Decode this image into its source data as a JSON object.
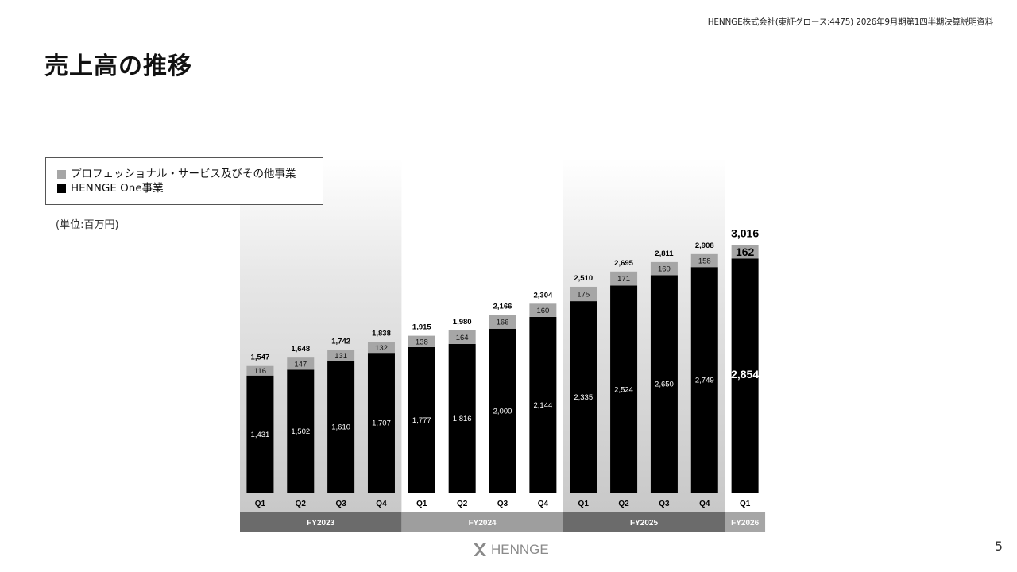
{
  "header": {
    "note": "HENNGE株式会社(東証グロース:4475) 2026年9月期第1四半期決算説明資料"
  },
  "page": {
    "title": "売上高の推移",
    "unit": "(単位:百万円)",
    "number": "5",
    "logo_text": "HENNGE"
  },
  "colors": {
    "henn_one": "#000000",
    "pro": "#a6a6a6",
    "band_fy2023": "#6b6b6b",
    "band_fy2024": "#9e9e9e",
    "band_fy2025": "#6b6b6b",
    "band_fy2026": "#a6a6a6"
  },
  "chart_data": {
    "type": "bar",
    "stacked": true,
    "categories": [
      "Q1",
      "Q2",
      "Q3",
      "Q4",
      "Q1",
      "Q2",
      "Q3",
      "Q4",
      "Q1",
      "Q2",
      "Q3",
      "Q4",
      "Q1"
    ],
    "fiscal_years": [
      {
        "label": "FY2023",
        "count": 4
      },
      {
        "label": "FY2024",
        "count": 4
      },
      {
        "label": "FY2025",
        "count": 4
      },
      {
        "label": "FY2026",
        "count": 1
      }
    ],
    "series": [
      {
        "name": "HENNGE One事業",
        "values": [
          1431,
          1502,
          1610,
          1707,
          1777,
          1816,
          2000,
          2144,
          2335,
          2524,
          2650,
          2749,
          2854
        ]
      },
      {
        "name": "プロフェッショナル・サービス及びその他事業",
        "values": [
          116,
          147,
          131,
          132,
          138,
          164,
          166,
          160,
          175,
          171,
          160,
          158,
          162
        ]
      }
    ],
    "totals": [
      1547,
      1648,
      1742,
      1838,
      1915,
      1980,
      2166,
      2304,
      2510,
      2695,
      2811,
      2908,
      3016
    ],
    "value_labels": {
      "henn_one": [
        "1,431",
        "1,502",
        "1,610",
        "1,707",
        "1,777",
        "1,816",
        "2,000",
        "2,144",
        "2,335",
        "2,524",
        "2,650",
        "2,749",
        "2,854"
      ],
      "pro": [
        "116",
        "147",
        "131",
        "132",
        "138",
        "164",
        "166",
        "160",
        "175",
        "171",
        "160",
        "158",
        "162"
      ],
      "totals": [
        "1,547",
        "1,648",
        "1,742",
        "1,838",
        "1,915",
        "1,980",
        "2,166",
        "2,304",
        "2,510",
        "2,695",
        "2,811",
        "2,908",
        "3,016"
      ]
    },
    "legend": {
      "placement": "top-left",
      "items": [
        {
          "label": "プロフェッショナル・サービス及びその他事業",
          "color": "#a6a6a6"
        },
        {
          "label": "HENNGE One事業",
          "color": "#000000"
        }
      ]
    },
    "ylim": [
      0,
      3100
    ],
    "grid": false
  }
}
